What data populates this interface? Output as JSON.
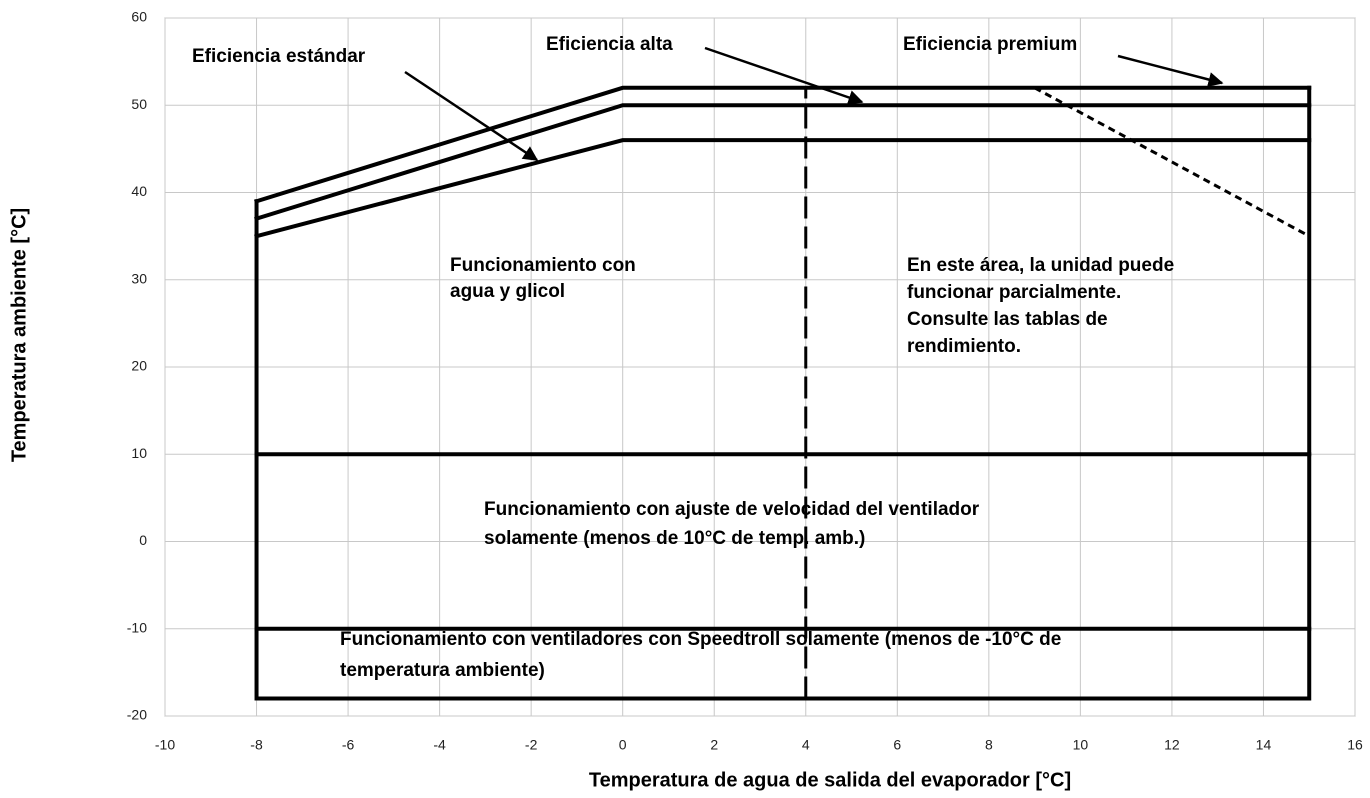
{
  "chart_data": {
    "type": "line",
    "xlabel": "Temperatura de agua de salida del evaporador [°C]",
    "ylabel": "Temperatura ambiente [°C]",
    "xlim": [
      -10,
      16
    ],
    "xticks": [
      -10,
      -8,
      -6,
      -4,
      -2,
      0,
      2,
      4,
      6,
      8,
      10,
      12,
      14,
      16
    ],
    "ylim": [
      -20,
      60
    ],
    "yticks": [
      -20,
      -10,
      0,
      10,
      20,
      30,
      40,
      50,
      60
    ],
    "grid": true,
    "series": [
      {
        "color": "#000000",
        "line_style": "solid",
        "x": [
          -8,
          0,
          15
        ],
        "values": [
          39,
          52,
          52
        ]
      },
      {
        "color": "#000000",
        "line_style": "solid",
        "x": [
          -8,
          0,
          15
        ],
        "values": [
          37,
          50,
          50
        ]
      },
      {
        "color": "#000000",
        "line_style": "solid",
        "x": [
          -8,
          0,
          15
        ],
        "values": [
          35,
          46,
          46
        ]
      },
      {
        "color": "#000000",
        "line_style": "solid",
        "x": [
          -8,
          -8,
          15,
          15
        ],
        "values": [
          39,
          -18,
          -18,
          52
        ]
      },
      {
        "color": "#000000",
        "line_style": "solid",
        "x": [
          -8,
          15
        ],
        "values": [
          10,
          10
        ]
      },
      {
        "color": "#000000",
        "line_style": "solid",
        "x": [
          -8,
          15
        ],
        "values": [
          -10,
          -10
        ]
      },
      {
        "color": "#000000",
        "line_style": "dashed",
        "x": [
          4,
          4
        ],
        "values": [
          -18,
          52
        ]
      },
      {
        "color": "#000000",
        "line_style": "dotted",
        "x": [
          9,
          15
        ],
        "values": [
          52,
          35
        ]
      }
    ],
    "annotations": [
      [
        "Eficiencia estándar"
      ],
      [
        "Eficiencia alta"
      ],
      [
        "Eficiencia premium"
      ],
      [
        "Funcionamiento con",
        "agua y glicol"
      ],
      [
        "En este área, la unidad puede",
        "funcionar parcialmente.",
        "Consulte las tablas de",
        "rendimiento."
      ],
      [
        "Funcionamiento con ajuste de velocidad del ventilador",
        "solamente (menos de 10°C de temp. amb.)"
      ],
      [
        "Funcionamiento con ventiladores con Speedtroll solamente (menos de -10°C de",
        "temperatura ambiente)"
      ]
    ]
  }
}
